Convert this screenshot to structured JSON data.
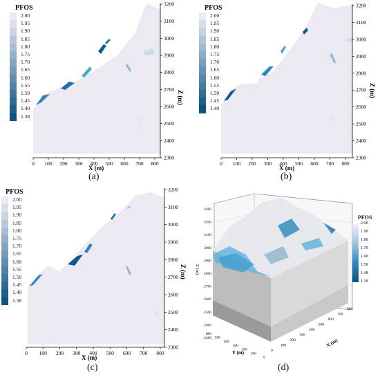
{
  "figure": {
    "panels": [
      {
        "id": "a",
        "caption": "(a)",
        "legend_title": "PFOS",
        "legend_values": [
          "2.00",
          "1.95",
          "1.90",
          "1.85",
          "1.80",
          "1.75",
          "1.70",
          "1.65",
          "1.60",
          "1.55",
          "1.50",
          "1.45",
          "1.40",
          "1.38"
        ],
        "x_axis_label": "X (m)",
        "x_ticks": [
          "0",
          "100",
          "200",
          "300",
          "400",
          "500",
          "600",
          "700",
          "800"
        ],
        "z_axis_label": "Z (m)",
        "z_ticks": [
          "3200",
          "3100",
          "3000",
          "2900",
          "2800",
          "2700",
          "2600",
          "2500",
          "2400",
          "2300"
        ]
      },
      {
        "id": "b",
        "caption": "(b)",
        "legend_title": "PFOS",
        "legend_values": [
          "2.00",
          "1.95",
          "1.90",
          "1.85",
          "1.80",
          "1.75",
          "1.70",
          "1.65",
          "1.60",
          "1.55",
          "1.50",
          "1.45",
          "1.40"
        ],
        "x_axis_label": "X (m)",
        "x_ticks": [
          "0",
          "100",
          "200",
          "300",
          "400",
          "500",
          "600",
          "700",
          "800"
        ],
        "z_axis_label": "Z (m)",
        "z_ticks": [
          "3200",
          "3100",
          "3000",
          "2900",
          "2800",
          "2700",
          "2600",
          "2500",
          "2400",
          "2300"
        ]
      },
      {
        "id": "c",
        "caption": "(c)",
        "legend_title": "PFOS",
        "legend_values": [
          "2.00",
          "1.95",
          "1.90",
          "1.85",
          "1.80",
          "1.75",
          "1.70",
          "1.65",
          "1.60",
          "1.55",
          "1.50",
          "1.45",
          "1.40",
          "1.38"
        ],
        "x_axis_label": "X (m)",
        "x_ticks": [
          "0",
          "100",
          "200",
          "300",
          "400",
          "500",
          "600",
          "700",
          "800"
        ],
        "z_axis_label": "Z (m)",
        "z_ticks": [
          "3200",
          "3100",
          "3000",
          "2900",
          "2800",
          "2700",
          "2600",
          "2500",
          "2400",
          "2300"
        ]
      },
      {
        "id": "d",
        "caption": "(d)",
        "legend_title": "PFOS",
        "legend_values": [
          "2.08",
          "1.98",
          "1.88",
          "1.78",
          "1.68",
          "1.58",
          "1.48",
          "1.38"
        ],
        "x_axis_label": "X (m)",
        "y_axis_label": "Y (m)",
        "z_axis_label": "Z (m)",
        "x_ticks": [
          "0",
          "100",
          "200",
          "300",
          "400",
          "500",
          "600",
          "700",
          "800"
        ],
        "y_ticks": [
          "0",
          "100",
          "200",
          "300",
          "400",
          "500",
          "600"
        ],
        "z_ticks": [
          "3300",
          "3200",
          "3100",
          "3000",
          "2900",
          "2800",
          "2700",
          "2600",
          "2500",
          "2400",
          "2300"
        ]
      }
    ],
    "colors": {
      "slope_fill": "#ece9f3",
      "low_fos": "#0b5c8e",
      "mid_fos": "#4aa7d6",
      "high_fos": "#c8dcec"
    }
  }
}
